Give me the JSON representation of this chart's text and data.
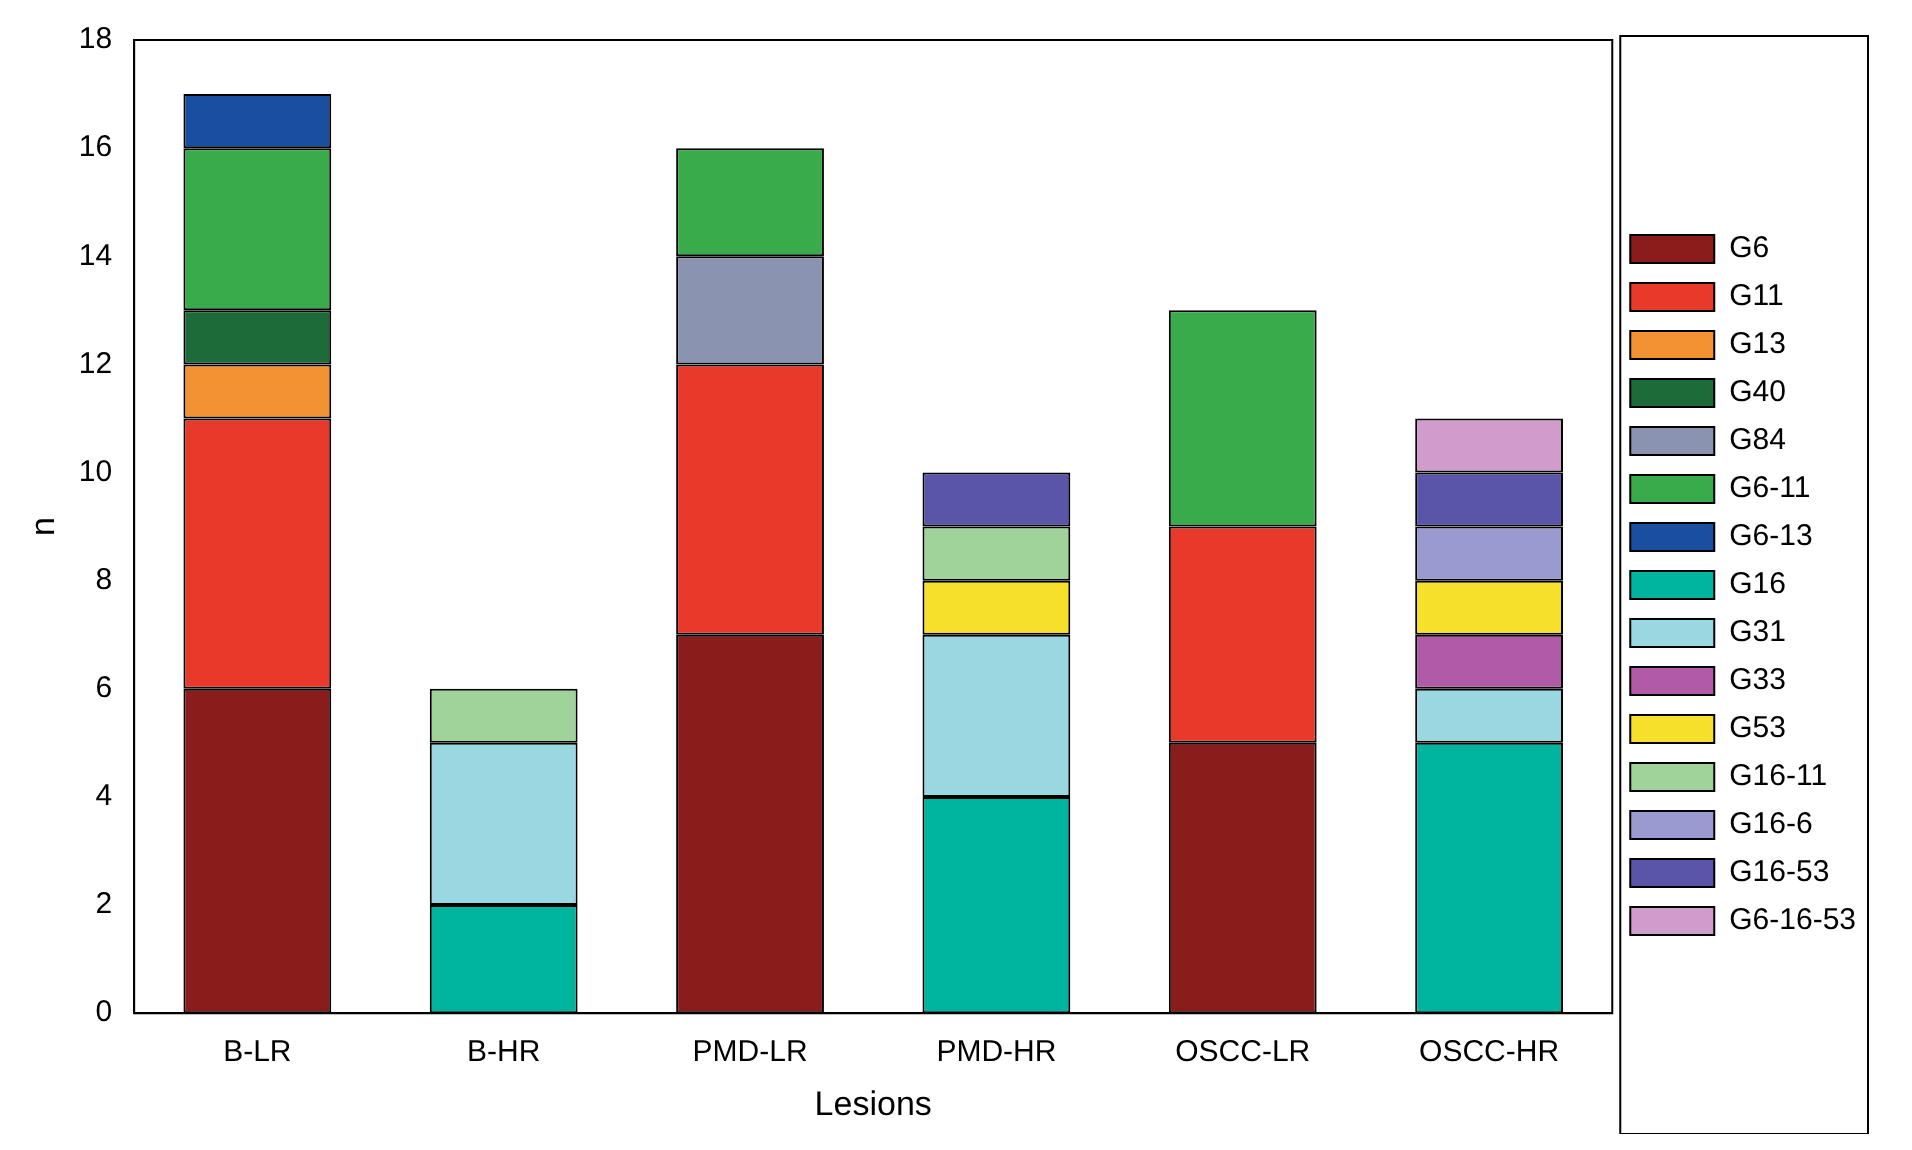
{
  "chart_data": {
    "type": "bar",
    "stacked": true,
    "xlabel": "Lesions",
    "ylabel": "n",
    "categories": [
      "B-LR",
      "B-HR",
      "PMD-LR",
      "PMD-HR",
      "OSCC-LR",
      "OSCC-HR"
    ],
    "ylim": [
      0,
      18
    ],
    "yticks": [
      0,
      2,
      4,
      6,
      8,
      10,
      12,
      14,
      16,
      18
    ],
    "grid": false,
    "legend": "right",
    "series": [
      {
        "name": "G6",
        "color": "#8b1c1c",
        "values": [
          6,
          null,
          7,
          null,
          5,
          null
        ]
      },
      {
        "name": "G11",
        "color": "#e8392a",
        "values": [
          5,
          null,
          5,
          null,
          4,
          null
        ]
      },
      {
        "name": "G13",
        "color": "#f39232",
        "values": [
          1,
          null,
          null,
          null,
          null,
          null
        ]
      },
      {
        "name": "G40",
        "color": "#1e6b3a",
        "values": [
          1,
          null,
          null,
          null,
          null,
          null
        ]
      },
      {
        "name": "G84",
        "color": "#8a93b0",
        "values": [
          null,
          null,
          2,
          null,
          null,
          null
        ]
      },
      {
        "name": "G6-11",
        "color": "#3aab4a",
        "values": [
          3,
          null,
          2,
          null,
          4,
          null
        ]
      },
      {
        "name": "G6-13",
        "color": "#1a4fa0",
        "values": [
          1,
          null,
          null,
          null,
          null,
          null
        ]
      },
      {
        "name": "G16",
        "color": "#00b5a0",
        "values": [
          null,
          2,
          null,
          4,
          null,
          5
        ]
      },
      {
        "name": "G31",
        "color": "#99d8e0",
        "values": [
          null,
          3,
          null,
          3,
          null,
          1
        ]
      },
      {
        "name": "G33",
        "color": "#b05aa8",
        "values": [
          null,
          null,
          null,
          null,
          null,
          1
        ]
      },
      {
        "name": "G53",
        "color": "#f7e02a",
        "values": [
          null,
          null,
          null,
          1,
          null,
          1
        ]
      },
      {
        "name": "G16-11",
        "color": "#9fd39a",
        "values": [
          null,
          1,
          null,
          1,
          null,
          null
        ]
      },
      {
        "name": "G16-6",
        "color": "#9a9ad0",
        "values": [
          null,
          null,
          null,
          null,
          null,
          1
        ]
      },
      {
        "name": "G16-53",
        "color": "#5a55a8",
        "values": [
          null,
          null,
          null,
          1,
          null,
          1
        ]
      },
      {
        "name": "G6-16-53",
        "color": "#cf9ccc",
        "values": [
          null,
          null,
          null,
          null,
          null,
          1
        ]
      }
    ]
  }
}
